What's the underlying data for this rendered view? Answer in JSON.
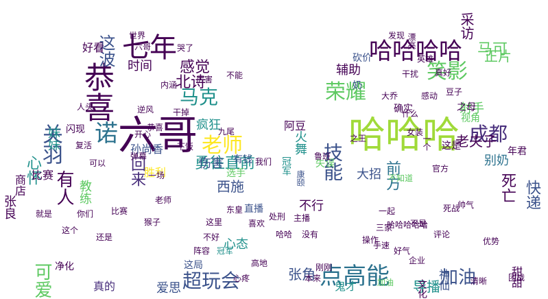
{
  "wordcloud": {
    "words": [
      {
        "text": "六哥",
        "color": "#440154",
        "rotate": 0
      },
      {
        "text": "哈哈哈",
        "color": "#a0da39",
        "rotate": 0
      },
      {
        "text": "哈哈哈哈",
        "color": "#440154",
        "rotate": 0
      },
      {
        "text": "七年",
        "color": "#440154",
        "rotate": 0
      },
      {
        "text": "恭喜",
        "color": "#440154",
        "rotate": 90
      },
      {
        "text": "诺",
        "color": "#2c728e",
        "rotate": 0
      },
      {
        "text": "老师",
        "color": "#fde725",
        "rotate": 0
      },
      {
        "text": "马克",
        "color": "#21918c",
        "rotate": 0
      },
      {
        "text": "这波",
        "color": "#3b528b",
        "rotate": 90
      },
      {
        "text": "笑影",
        "color": "#5ec962",
        "rotate": 0
      },
      {
        "text": "荣耀",
        "color": "#5ec962",
        "rotate": 0
      },
      {
        "text": "成都",
        "color": "#472d7b",
        "rotate": 0
      },
      {
        "text": "马可",
        "color": "#5ec962",
        "rotate": 0
      },
      {
        "text": "辅助",
        "color": "#440154",
        "rotate": 0
      },
      {
        "text": "射手",
        "color": "#5ec962",
        "rotate": 0
      },
      {
        "text": "别奶",
        "color": "#2c728e",
        "rotate": 0
      },
      {
        "text": "技能",
        "color": "#3b528b",
        "rotate": 90
      },
      {
        "text": "大招",
        "color": "#3b528b",
        "rotate": 0
      },
      {
        "text": "前方",
        "color": "#2c728e",
        "rotate": 90
      },
      {
        "text": "点高能",
        "color": "#2c728e",
        "rotate": 0
      },
      {
        "text": "加油",
        "color": "#3b528b",
        "rotate": 0
      },
      {
        "text": "导播",
        "color": "#21918c",
        "rotate": 0
      },
      {
        "text": "鬼才",
        "color": "#21918c",
        "rotate": 0
      },
      {
        "text": "张角",
        "color": "#3b528b",
        "rotate": 0
      },
      {
        "text": "可爱",
        "color": "#5ec962",
        "rotate": 90
      },
      {
        "text": "超玩会",
        "color": "#3b528b",
        "rotate": 0
      },
      {
        "text": "真的",
        "color": "#472d7b",
        "rotate": 0
      },
      {
        "text": "爱思",
        "color": "#3b528b",
        "rotate": 0
      },
      {
        "text": "心态",
        "color": "#21918c",
        "rotate": 0
      },
      {
        "text": "有人",
        "color": "#440154",
        "rotate": 90
      },
      {
        "text": "关羽",
        "color": "#3b528b",
        "rotate": 90
      },
      {
        "text": "心怀",
        "color": "#21918c",
        "rotate": 90
      },
      {
        "text": "回来",
        "color": "#472d7b",
        "rotate": 90
      },
      {
        "text": "勇往直前",
        "color": "#21918c",
        "rotate": 0
      },
      {
        "text": "疯狂",
        "color": "#21918c",
        "rotate": 0
      },
      {
        "text": "感觉",
        "color": "#440154",
        "rotate": 0
      },
      {
        "text": "北诗",
        "color": "#440154",
        "rotate": 0
      },
      {
        "text": "时间",
        "color": "#440154",
        "rotate": 0
      },
      {
        "text": "好看",
        "color": "#440154",
        "rotate": 0
      },
      {
        "text": "妹妹",
        "color": "#21918c",
        "rotate": 90
      },
      {
        "text": "伤害",
        "color": "#3b528b",
        "rotate": 0
      },
      {
        "text": "西施",
        "color": "#3b528b",
        "rotate": 0
      },
      {
        "text": "直播",
        "color": "#3b528b",
        "rotate": 0
      },
      {
        "text": "净化",
        "color": "#440154",
        "rotate": 0
      },
      {
        "text": "这局",
        "color": "#3b528b",
        "rotate": 0
      },
      {
        "text": "比赛",
        "color": "#440154",
        "rotate": 0
      },
      {
        "text": "商店",
        "color": "#440154",
        "rotate": 90
      },
      {
        "text": "张良",
        "color": "#440154",
        "rotate": 90
      },
      {
        "text": "教练",
        "color": "#5ec962",
        "rotate": 90
      },
      {
        "text": "快递",
        "color": "#3b528b",
        "rotate": 90
      },
      {
        "text": "死亡",
        "color": "#440154",
        "rotate": 90
      },
      {
        "text": "老夫子",
        "color": "#440154",
        "rotate": 0
      },
      {
        "text": "火舞",
        "color": "#21918c",
        "rotate": 90
      },
      {
        "text": "失误",
        "color": "#5ec962",
        "rotate": 0
      },
      {
        "text": "冠军",
        "color": "#21918c",
        "rotate": 90
      },
      {
        "text": "这是",
        "color": "#440154",
        "rotate": 0
      },
      {
        "text": "年君",
        "color": "#440154",
        "rotate": 0
      },
      {
        "text": "不行",
        "color": "#440154",
        "rotate": 0
      },
      {
        "text": "阿豆",
        "color": "#440154",
        "rotate": 0
      },
      {
        "text": "甜甜",
        "color": "#440154",
        "rotate": 90
      },
      {
        "text": "神仙",
        "color": "#3b528b",
        "rotate": 90
      },
      {
        "text": "文化",
        "color": "#440154",
        "rotate": 90
      },
      {
        "text": "之母",
        "color": "#440154",
        "rotate": 0
      },
      {
        "text": "视角",
        "color": "#5ec962",
        "rotate": 0
      },
      {
        "text": "正片",
        "color": "#5ec962",
        "rotate": 0
      },
      {
        "text": "确实",
        "color": "#440154",
        "rotate": 0
      },
      {
        "text": "采访",
        "color": "#440154",
        "rotate": 90
      },
      {
        "text": "砍价",
        "color": "#3b528b",
        "rotate": 0
      },
      {
        "text": "奶",
        "color": "#3b528b",
        "rotate": 0
      },
      {
        "text": "康颐",
        "color": "#3b528b",
        "rotate": 90
      },
      {
        "text": "漂亮",
        "color": "#440154",
        "rotate": 90
      },
      {
        "text": "死战",
        "color": "#440154",
        "rotate": 0
      },
      {
        "text": "三家",
        "color": "#440154",
        "rotate": 0
      },
      {
        "text": "发现",
        "color": "#440154",
        "rotate": 0
      },
      {
        "text": "世界",
        "color": "#440154",
        "rotate": 0
      },
      {
        "text": "逆风",
        "color": "#440154",
        "rotate": 0
      },
      {
        "text": "孙尚香",
        "color": "#3b528b",
        "rotate": 0
      },
      {
        "text": "闪现",
        "color": "#440154",
        "rotate": 0
      },
      {
        "text": "复活",
        "color": "#440154",
        "rotate": 0
      },
      {
        "text": "人头",
        "color": "#440154",
        "rotate": 0
      },
      {
        "text": "胜利",
        "color": "#fde725",
        "rotate": 0
      },
      {
        "text": "选手",
        "color": "#5ec962",
        "rotate": 0
      },
      {
        "text": "有钱",
        "color": "#3b528b",
        "rotate": 0
      },
      {
        "text": "内涵",
        "color": "#440154",
        "rotate": 0
      },
      {
        "text": "厉害",
        "color": "#440154",
        "rotate": 0
      },
      {
        "text": "干掉",
        "color": "#440154",
        "rotate": 0
      },
      {
        "text": "弹幕",
        "color": "#440154",
        "rotate": 0
      },
      {
        "text": "一场",
        "color": "#440154",
        "rotate": 0
      },
      {
        "text": "九尾",
        "color": "#440154",
        "rotate": 0
      },
      {
        "text": "下饭",
        "color": "#440154",
        "rotate": 0
      },
      {
        "text": "阵容",
        "color": "#440154",
        "rotate": 0
      },
      {
        "text": "主播",
        "color": "#440154",
        "rotate": 0
      },
      {
        "text": "没有",
        "color": "#440154",
        "rotate": 0
      },
      {
        "text": "不知道",
        "color": "#5ec962",
        "rotate": 0
      },
      {
        "text": "不是",
        "color": "#440154",
        "rotate": 0
      },
      {
        "text": "一个",
        "color": "#440154",
        "rotate": 90
      },
      {
        "text": "评论",
        "color": "#440154",
        "rotate": 0
      },
      {
        "text": "豆子",
        "color": "#440154",
        "rotate": 0
      },
      {
        "text": "手速",
        "color": "#440154",
        "rotate": 0
      },
      {
        "text": "清晰",
        "color": "#440154",
        "rotate": 0
      },
      {
        "text": "刚刚",
        "color": "#440154",
        "rotate": 0
      },
      {
        "text": "哈哈",
        "color": "#440154",
        "rotate": 0
      },
      {
        "text": "高地",
        "color": "#440154",
        "rotate": 0
      },
      {
        "text": "冠军",
        "color": "#21918c",
        "rotate": 0
      },
      {
        "text": "不好",
        "color": "#440154",
        "rotate": 0
      },
      {
        "text": "企业",
        "color": "#440154",
        "rotate": 0
      },
      {
        "text": "加油",
        "color": "#5ec962",
        "rotate": 0
      },
      {
        "text": "处刑",
        "color": "#440154",
        "rotate": 0
      },
      {
        "text": "本来",
        "color": "#440154",
        "rotate": 0
      },
      {
        "text": "之王",
        "color": "#440154",
        "rotate": 0
      },
      {
        "text": "一起",
        "color": "#440154",
        "rotate": 0
      },
      {
        "text": "操作",
        "color": "#440154",
        "rotate": 0
      },
      {
        "text": "这里",
        "color": "#440154",
        "rotate": 0
      },
      {
        "text": "哈哈哈哈哈",
        "color": "#440154",
        "rotate": 0
      },
      {
        "text": "心疼",
        "color": "#440154",
        "rotate": 0
      },
      {
        "text": "干扰",
        "color": "#440154",
        "rotate": 0
      },
      {
        "text": "好气",
        "color": "#440154",
        "rotate": 0
      },
      {
        "text": "真好",
        "color": "#440154",
        "rotate": 0
      },
      {
        "text": "鲁班",
        "color": "#440154",
        "rotate": 0
      },
      {
        "text": "喜欢",
        "color": "#440154",
        "rotate": 0
      },
      {
        "text": "不能",
        "color": "#440154",
        "rotate": 0
      },
      {
        "text": "英雄",
        "color": "#440154",
        "rotate": 0
      },
      {
        "text": "感动",
        "color": "#440154",
        "rotate": 0
      },
      {
        "text": "恭喜",
        "color": "#440154",
        "rotate": 0
      },
      {
        "text": "六哥",
        "color": "#440154",
        "rotate": 0
      },
      {
        "text": "老师",
        "color": "#440154",
        "rotate": 0
      },
      {
        "text": "哭了",
        "color": "#440154",
        "rotate": 0
      },
      {
        "text": "开心",
        "color": "#440154",
        "rotate": 0
      },
      {
        "text": "可以",
        "color": "#440154",
        "rotate": 0
      },
      {
        "text": "这个",
        "color": "#440154",
        "rotate": 0
      },
      {
        "text": "你们",
        "color": "#440154",
        "rotate": 0
      },
      {
        "text": "我们",
        "color": "#440154",
        "rotate": 0
      },
      {
        "text": "什么",
        "color": "#440154",
        "rotate": 0
      },
      {
        "text": "就是",
        "color": "#440154",
        "rotate": 0
      },
      {
        "text": "还是",
        "color": "#440154",
        "rotate": 0
      },
      {
        "text": "比赛",
        "color": "#440154",
        "rotate": 0
      },
      {
        "text": "东皇",
        "color": "#440154",
        "rotate": 0
      },
      {
        "text": "猴子",
        "color": "#440154",
        "rotate": 0
      },
      {
        "text": "大乔",
        "color": "#440154",
        "rotate": 0
      },
      {
        "text": "女装",
        "color": "#440154",
        "rotate": 0
      },
      {
        "text": "官方",
        "color": "#440154",
        "rotate": 0
      },
      {
        "text": "帅气",
        "color": "#440154",
        "rotate": 0
      },
      {
        "text": "优势",
        "color": "#440154",
        "rotate": 0
      },
      {
        "text": "团战",
        "color": "#440154",
        "rotate": 0
      }
    ]
  }
}
